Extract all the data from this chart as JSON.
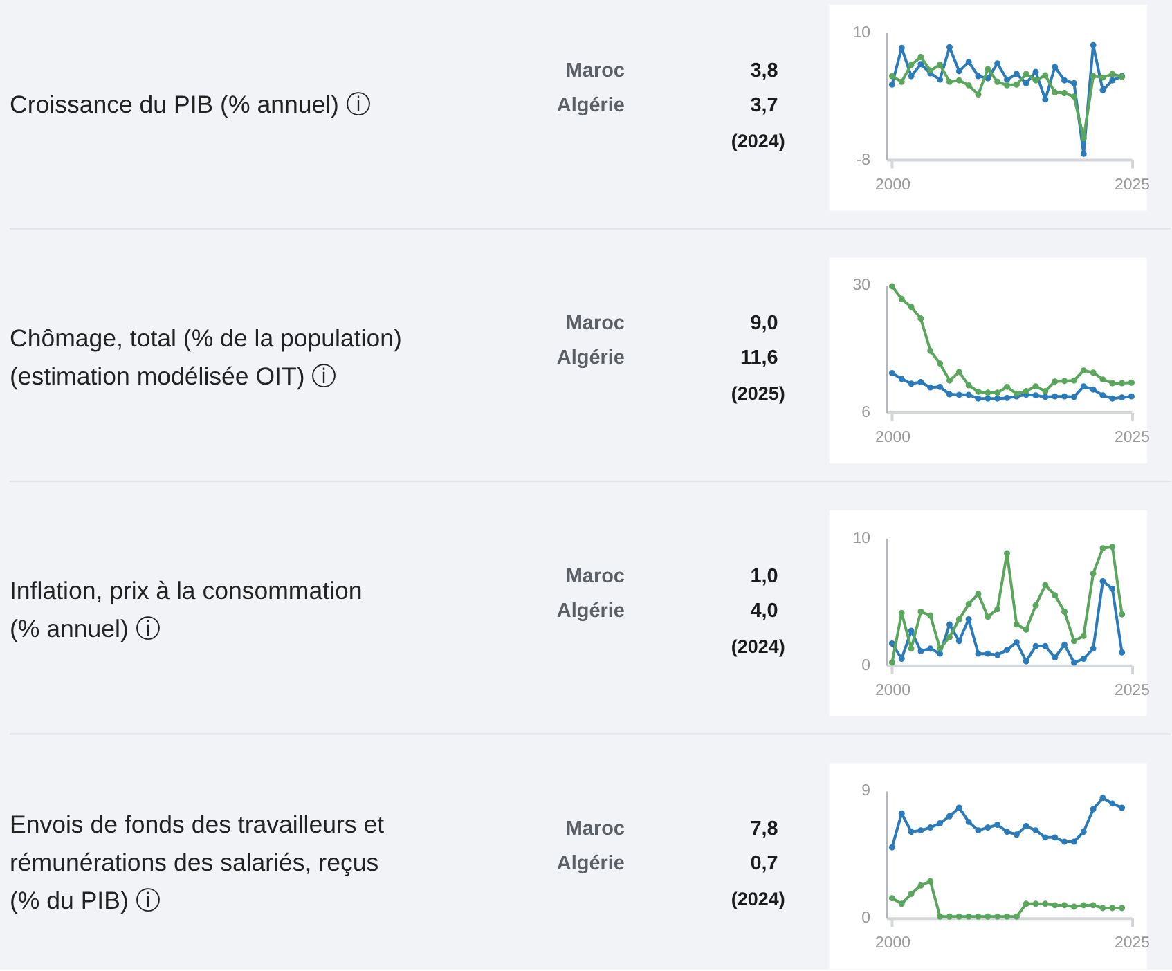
{
  "chart_data": [
    {
      "type": "other",
      "title": "Croissance du PIB (% annuel) ⓘ",
      "annotations": [
        "Maroc",
        "3,8",
        "Algérie",
        "3,7",
        "(2024)"
      ]
    },
    {
      "type": "line",
      "x": [
        2000,
        2001,
        2002,
        2003,
        2004,
        2005,
        2006,
        2007,
        2008,
        2009,
        2010,
        2011,
        2012,
        2013,
        2014,
        2015,
        2016,
        2017,
        2018,
        2019,
        2020,
        2021,
        2022,
        2023,
        2024
      ],
      "series": [
        {
          "color": "#2b7bba",
          "values": [
            2.6,
            7.8,
            3.8,
            5.5,
            4.2,
            3.3,
            7.9,
            4.5,
            5.8,
            3.8,
            3.5,
            5.6,
            3.3,
            4.1,
            2.8,
            4.4,
            0.5,
            5.1,
            3.2,
            2.8,
            -7.2,
            8.2,
            1.8,
            3.2,
            3.8
          ]
        },
        {
          "color": "#5aa65c",
          "values": [
            3.8,
            3.0,
            5.4,
            6.5,
            4.6,
            5.4,
            3.0,
            3.2,
            2.5,
            1.2,
            4.8,
            3.0,
            2.5,
            2.6,
            4.1,
            3.2,
            3.9,
            1.5,
            1.4,
            0.9,
            -5.0,
            3.8,
            3.6,
            4.1,
            3.7
          ]
        }
      ],
      "xlim": [
        1999.4,
        2025
      ],
      "xticks": [
        2000,
        2025
      ],
      "ylim": [
        -8,
        10
      ],
      "yticks": [
        -8,
        10
      ],
      "marker": "circle",
      "line_style": "solid"
    },
    {
      "type": "other",
      "title": "Chômage, total (% de la population) (estimation modélisée OIT) ⓘ",
      "annotations": [
        "Maroc",
        "9,0",
        "Algérie",
        "11,6",
        "(2025)"
      ]
    },
    {
      "type": "line",
      "x": [
        2000,
        2001,
        2002,
        2003,
        2004,
        2005,
        2006,
        2007,
        2008,
        2009,
        2010,
        2011,
        2012,
        2013,
        2014,
        2015,
        2016,
        2017,
        2018,
        2019,
        2020,
        2021,
        2022,
        2023,
        2024,
        2025
      ],
      "series": [
        {
          "color": "#2b7bba",
          "values": [
            13.4,
            12.3,
            11.4,
            11.7,
            10.7,
            10.8,
            9.4,
            9.3,
            9.3,
            8.6,
            8.6,
            8.6,
            8.7,
            9.0,
            9.3,
            9.2,
            8.9,
            9.0,
            9.0,
            8.9,
            10.9,
            10.3,
            9.2,
            8.6,
            8.8,
            9.0
          ]
        },
        {
          "color": "#5aa65c",
          "values": [
            29.8,
            27.4,
            25.9,
            23.7,
            17.6,
            15.2,
            12.0,
            13.6,
            11.1,
            9.9,
            9.7,
            9.7,
            10.8,
            9.5,
            10.0,
            10.9,
            10.0,
            11.8,
            11.9,
            12.0,
            13.9,
            13.5,
            12.2,
            11.5,
            11.5,
            11.6
          ]
        }
      ],
      "xlim": [
        1999.4,
        2025
      ],
      "xticks": [
        2000,
        2025
      ],
      "ylim": [
        6,
        30
      ],
      "yticks": [
        6,
        30
      ],
      "marker": "circle",
      "line_style": "solid"
    },
    {
      "type": "other",
      "title": "Inflation, prix à la consommation (% annuel) ⓘ",
      "annotations": [
        "Maroc",
        "1,0",
        "Algérie",
        "4,0",
        "(2024)"
      ]
    },
    {
      "type": "line",
      "x": [
        2000,
        2001,
        2002,
        2003,
        2004,
        2005,
        2006,
        2007,
        2008,
        2009,
        2010,
        2011,
        2012,
        2013,
        2014,
        2015,
        2016,
        2017,
        2018,
        2019,
        2020,
        2021,
        2022,
        2023,
        2024
      ],
      "series": [
        {
          "color": "#2b7bba",
          "values": [
            1.7,
            0.5,
            2.7,
            1.1,
            1.3,
            0.9,
            3.2,
            1.9,
            3.6,
            0.9,
            0.9,
            0.8,
            1.2,
            1.8,
            0.3,
            1.5,
            1.5,
            0.6,
            1.6,
            0.2,
            0.5,
            1.3,
            6.6,
            6.0,
            1.0
          ]
        },
        {
          "color": "#5aa65c",
          "values": [
            0.2,
            4.1,
            1.3,
            4.2,
            3.9,
            1.3,
            2.2,
            3.6,
            4.8,
            5.6,
            3.8,
            4.4,
            8.8,
            3.2,
            2.8,
            4.7,
            6.3,
            5.5,
            4.2,
            1.9,
            2.3,
            7.2,
            9.2,
            9.3,
            4.0
          ]
        }
      ],
      "xlim": [
        1999.4,
        2025
      ],
      "xticks": [
        2000,
        2025
      ],
      "ylim": [
        0,
        10
      ],
      "yticks": [
        0,
        10
      ],
      "marker": "circle",
      "line_style": "solid"
    },
    {
      "type": "other",
      "title": "Envois de fonds des travailleurs et rémunérations des salariés, reçus (% du PIB) ⓘ",
      "annotations": [
        "Maroc",
        "7,8",
        "Algérie",
        "0,7",
        "(2024)"
      ]
    },
    {
      "type": "line",
      "x": [
        2000,
        2001,
        2002,
        2003,
        2004,
        2005,
        2006,
        2007,
        2008,
        2009,
        2010,
        2011,
        2012,
        2013,
        2014,
        2015,
        2016,
        2017,
        2018,
        2019,
        2020,
        2021,
        2022,
        2023,
        2024
      ],
      "series": [
        {
          "color": "#2b7bba",
          "values": [
            5.0,
            7.4,
            6.1,
            6.2,
            6.4,
            6.7,
            7.2,
            7.8,
            6.8,
            6.2,
            6.4,
            6.6,
            6.1,
            5.9,
            6.5,
            6.2,
            5.7,
            5.7,
            5.4,
            5.4,
            6.1,
            7.7,
            8.5,
            8.1,
            7.8
          ]
        },
        {
          "color": "#5aa65c",
          "values": [
            1.4,
            1.0,
            1.7,
            2.3,
            2.6,
            0.1,
            0.1,
            0.1,
            0.1,
            0.1,
            0.1,
            0.1,
            0.1,
            0.1,
            1.0,
            1.0,
            1.0,
            0.9,
            0.9,
            0.8,
            0.9,
            0.9,
            0.7,
            0.7,
            0.7
          ]
        }
      ],
      "xlim": [
        1999.4,
        2025
      ],
      "xticks": [
        2000,
        2025
      ],
      "ylim": [
        0,
        9
      ],
      "yticks": [
        0,
        9
      ],
      "marker": "circle",
      "line_style": "solid"
    }
  ]
}
